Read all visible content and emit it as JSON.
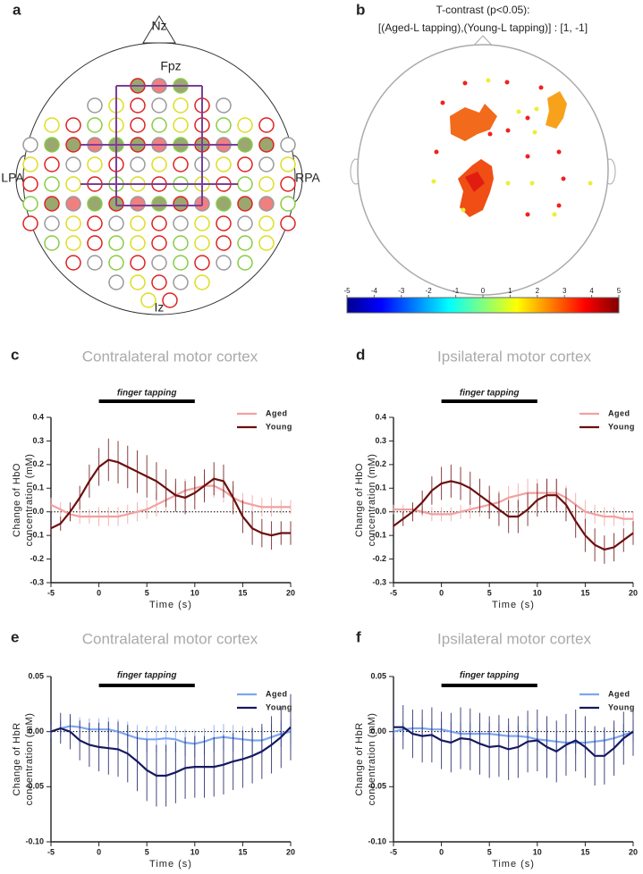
{
  "panel_a": {
    "letter": "a",
    "labels": {
      "nz": "Nz",
      "fpz": "Fpz",
      "lpa": "LPA",
      "rpa": "RPA",
      "iz": "Iz"
    }
  },
  "panel_b": {
    "letter": "b",
    "title": [
      "T-contrast (p<0.05):",
      "[(Aged-L tapping),(Young-L tapping)] : [1, -1]"
    ],
    "colorbar": {
      "lim": [
        -5,
        5
      ],
      "ticks": [
        -5,
        -4,
        -3,
        -2,
        -1,
        0,
        1,
        2,
        3,
        4,
        5
      ]
    }
  },
  "chart_data": [
    {
      "type": "line",
      "panel": "c",
      "title": "Contralateral motor cortex",
      "annotation": {
        "text": "finger tapping",
        "span": [
          0,
          10
        ]
      },
      "xlabel": "Time (s)",
      "ylabel": [
        "Change of HbO",
        "concentration (mM)"
      ],
      "x": [
        -5,
        -4,
        -3,
        -2,
        -1,
        0,
        1,
        2,
        3,
        4,
        5,
        6,
        7,
        8,
        9,
        10,
        11,
        12,
        13,
        14,
        15,
        16,
        17,
        18,
        19,
        20
      ],
      "xlim": [
        -5,
        20
      ],
      "xticks": [
        -5,
        0,
        5,
        10,
        15,
        20
      ],
      "ylim": [
        -0.3,
        0.4
      ],
      "yticks": [
        -0.3,
        -0.2,
        -0.1,
        {
          "value": 0,
          "label": "0.0"
        },
        0.1,
        0.2,
        0.3,
        0.4
      ],
      "series": [
        {
          "name": "Aged",
          "color": "#f2a0a0",
          "values": [
            0.03,
            0.01,
            -0.01,
            -0.02,
            -0.02,
            -0.02,
            -0.02,
            -0.02,
            -0.01,
            0.0,
            0.01,
            0.03,
            0.05,
            0.07,
            0.09,
            0.1,
            0.11,
            0.11,
            0.09,
            0.06,
            0.04,
            0.03,
            0.02,
            0.02,
            0.02,
            0.02
          ],
          "errors": [
            0.03,
            0.03,
            0.03,
            0.03,
            0.03,
            0.04,
            0.04,
            0.04,
            0.04,
            0.04,
            0.04,
            0.05,
            0.05,
            0.05,
            0.05,
            0.05,
            0.05,
            0.05,
            0.05,
            0.05,
            0.04,
            0.04,
            0.04,
            0.04,
            0.03,
            0.03
          ]
        },
        {
          "name": "Young",
          "color": "#6b1010",
          "values": [
            -0.07,
            -0.05,
            0.0,
            0.06,
            0.13,
            0.19,
            0.22,
            0.21,
            0.19,
            0.17,
            0.15,
            0.13,
            0.1,
            0.07,
            0.06,
            0.08,
            0.11,
            0.14,
            0.13,
            0.06,
            -0.02,
            -0.07,
            -0.09,
            -0.1,
            -0.09,
            -0.09
          ],
          "errors": [
            0.02,
            0.03,
            0.04,
            0.05,
            0.07,
            0.08,
            0.09,
            0.09,
            0.09,
            0.09,
            0.09,
            0.08,
            0.08,
            0.07,
            0.07,
            0.07,
            0.07,
            0.07,
            0.07,
            0.07,
            0.07,
            0.07,
            0.06,
            0.06,
            0.05,
            0.05
          ]
        }
      ]
    },
    {
      "type": "line",
      "panel": "d",
      "title": "Ipsilateral motor cortex",
      "annotation": {
        "text": "finger tapping",
        "span": [
          0,
          10
        ]
      },
      "xlabel": "Time (s)",
      "ylabel": [
        "Change of HbO",
        "concentration (mM)"
      ],
      "x": [
        -5,
        -4,
        -3,
        -2,
        -1,
        0,
        1,
        2,
        3,
        4,
        5,
        6,
        7,
        8,
        9,
        10,
        11,
        12,
        13,
        14,
        15,
        16,
        17,
        18,
        19,
        20
      ],
      "xlim": [
        -5,
        20
      ],
      "xticks": [
        -5,
        0,
        5,
        10,
        15,
        20
      ],
      "ylim": [
        -0.3,
        0.4
      ],
      "yticks": [
        -0.3,
        -0.2,
        -0.1,
        {
          "value": 0,
          "label": "0.0"
        },
        0.1,
        0.2,
        0.3,
        0.4
      ],
      "series": [
        {
          "name": "Aged",
          "color": "#f2a0a0",
          "values": [
            0.01,
            0.01,
            0.01,
            0.0,
            -0.01,
            -0.01,
            -0.01,
            0.0,
            0.01,
            0.02,
            0.03,
            0.04,
            0.06,
            0.07,
            0.08,
            0.08,
            0.08,
            0.08,
            0.06,
            0.03,
            0.0,
            -0.01,
            -0.02,
            -0.02,
            -0.03,
            -0.03
          ],
          "errors": [
            0.02,
            0.02,
            0.02,
            0.02,
            0.03,
            0.03,
            0.03,
            0.03,
            0.04,
            0.04,
            0.04,
            0.05,
            0.05,
            0.05,
            0.06,
            0.06,
            0.06,
            0.06,
            0.05,
            0.05,
            0.05,
            0.04,
            0.04,
            0.04,
            0.03,
            0.03
          ]
        },
        {
          "name": "Young",
          "color": "#6b1010",
          "values": [
            -0.06,
            -0.03,
            0.0,
            0.04,
            0.09,
            0.12,
            0.13,
            0.12,
            0.1,
            0.07,
            0.04,
            0.01,
            -0.02,
            -0.02,
            0.01,
            0.05,
            0.07,
            0.07,
            0.03,
            -0.04,
            -0.1,
            -0.14,
            -0.16,
            -0.15,
            -0.12,
            -0.09
          ],
          "errors": [
            0.02,
            0.03,
            0.04,
            0.05,
            0.06,
            0.07,
            0.07,
            0.07,
            0.07,
            0.07,
            0.07,
            0.07,
            0.07,
            0.07,
            0.07,
            0.07,
            0.07,
            0.07,
            0.07,
            0.07,
            0.07,
            0.07,
            0.06,
            0.06,
            0.05,
            0.05
          ]
        }
      ]
    },
    {
      "type": "line",
      "panel": "e",
      "title": "Contralateral motor cortex",
      "annotation": {
        "text": "finger tapping",
        "span": [
          0,
          10
        ]
      },
      "xlabel": "Time (s)",
      "ylabel": [
        "Change of HbR",
        "concentration (mM)"
      ],
      "x": [
        -5,
        -4,
        -3,
        -2,
        -1,
        0,
        1,
        2,
        3,
        4,
        5,
        6,
        7,
        8,
        9,
        10,
        11,
        12,
        13,
        14,
        15,
        16,
        17,
        18,
        19,
        20
      ],
      "xlim": [
        -5,
        20
      ],
      "xticks": [
        -5,
        0,
        5,
        10,
        15,
        20
      ],
      "ylim": [
        -0.1,
        0.05
      ],
      "yticks": [
        {
          "value": -0.1,
          "label": "-0.10"
        },
        -0.05,
        {
          "value": 0,
          "label": "0.00"
        },
        0.05
      ],
      "series": [
        {
          "name": "Aged",
          "color": "#7ea6f0",
          "values": [
            0.0,
            0.003,
            0.005,
            0.004,
            0.002,
            0.002,
            0.002,
            0.0,
            -0.003,
            -0.006,
            -0.007,
            -0.007,
            -0.006,
            -0.007,
            -0.01,
            -0.011,
            -0.009,
            -0.006,
            -0.005,
            -0.006,
            -0.007,
            -0.008,
            -0.008,
            -0.005,
            -0.002,
            0.0
          ],
          "errors": [
            0.006,
            0.007,
            0.008,
            0.009,
            0.01,
            0.01,
            0.011,
            0.011,
            0.012,
            0.012,
            0.012,
            0.012,
            0.012,
            0.012,
            0.012,
            0.012,
            0.012,
            0.012,
            0.012,
            0.012,
            0.012,
            0.012,
            0.012,
            0.012,
            0.012,
            0.012
          ]
        },
        {
          "name": "Young",
          "color": "#161a60",
          "values": [
            0.0,
            0.003,
            0.0,
            -0.008,
            -0.012,
            -0.014,
            -0.015,
            -0.016,
            -0.02,
            -0.027,
            -0.035,
            -0.04,
            -0.04,
            -0.037,
            -0.033,
            -0.032,
            -0.032,
            -0.032,
            -0.03,
            -0.027,
            -0.025,
            -0.022,
            -0.018,
            -0.012,
            -0.005,
            0.004
          ],
          "errors": [
            0.012,
            0.014,
            0.016,
            0.018,
            0.02,
            0.022,
            0.024,
            0.025,
            0.026,
            0.027,
            0.028,
            0.028,
            0.028,
            0.028,
            0.028,
            0.028,
            0.028,
            0.027,
            0.027,
            0.026,
            0.026,
            0.025,
            0.025,
            0.026,
            0.028,
            0.03
          ]
        }
      ]
    },
    {
      "type": "line",
      "panel": "f",
      "title": "Ipsilateral motor cortex",
      "annotation": {
        "text": "finger tapping",
        "span": [
          0,
          10
        ]
      },
      "xlabel": "Time (s)",
      "ylabel": [
        "Change of HbR",
        "concentration (mM)"
      ],
      "x": [
        -5,
        -4,
        -3,
        -2,
        -1,
        0,
        1,
        2,
        3,
        4,
        5,
        6,
        7,
        8,
        9,
        10,
        11,
        12,
        13,
        14,
        15,
        16,
        17,
        18,
        19,
        20
      ],
      "xlim": [
        -5,
        20
      ],
      "xticks": [
        -5,
        0,
        5,
        10,
        15,
        20
      ],
      "ylim": [
        -0.1,
        0.05
      ],
      "yticks": [
        {
          "value": -0.1,
          "label": "-0.10"
        },
        -0.05,
        {
          "value": 0,
          "label": "0.00"
        },
        0.05
      ],
      "series": [
        {
          "name": "Aged",
          "color": "#7ea6f0",
          "values": [
            0.0,
            0.002,
            0.003,
            0.003,
            0.002,
            0.002,
            0.0,
            -0.002,
            -0.002,
            -0.002,
            -0.002,
            -0.003,
            -0.004,
            -0.004,
            -0.005,
            -0.007,
            -0.008,
            -0.009,
            -0.01,
            -0.01,
            -0.01,
            -0.009,
            -0.008,
            -0.006,
            -0.003,
            0.0
          ],
          "errors": [
            0.005,
            0.006,
            0.007,
            0.008,
            0.008,
            0.009,
            0.009,
            0.01,
            0.01,
            0.01,
            0.01,
            0.01,
            0.01,
            0.01,
            0.01,
            0.01,
            0.01,
            0.01,
            0.01,
            0.01,
            0.01,
            0.01,
            0.01,
            0.01,
            0.01,
            0.01
          ]
        },
        {
          "name": "Young",
          "color": "#161a60",
          "values": [
            0.004,
            0.004,
            -0.002,
            -0.004,
            -0.003,
            -0.008,
            -0.01,
            -0.006,
            -0.007,
            -0.011,
            -0.014,
            -0.013,
            -0.016,
            -0.014,
            -0.009,
            -0.008,
            -0.014,
            -0.018,
            -0.012,
            -0.008,
            -0.014,
            -0.022,
            -0.022,
            -0.015,
            -0.006,
            0.0
          ],
          "errors": [
            0.018,
            0.02,
            0.022,
            0.024,
            0.025,
            0.026,
            0.027,
            0.028,
            0.028,
            0.028,
            0.028,
            0.028,
            0.028,
            0.028,
            0.028,
            0.028,
            0.028,
            0.028,
            0.028,
            0.028,
            0.028,
            0.027,
            0.026,
            0.025,
            0.024,
            0.022
          ]
        }
      ]
    }
  ]
}
